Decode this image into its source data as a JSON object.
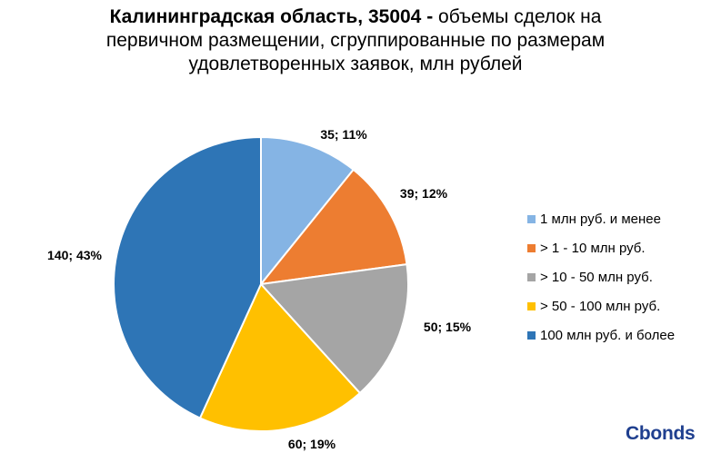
{
  "title": {
    "bold": "Калининградская область, 35004 -",
    "line1_rest": " объемы сделок на",
    "line2": "первичном размещении, сгруппированные по размерам",
    "line3": "удовлетворенных заявок, млн рублей"
  },
  "chart_data": {
    "type": "pie",
    "title": "Калининградская область, 35004 - объемы сделок на первичном размещении, сгруппированные по размерам удовлетворенных заявок, млн рублей",
    "categories": [
      "1 млн руб. и менее",
      "> 1 - 10 млн руб.",
      "> 10 - 50 млн руб.",
      "> 50 - 100 млн руб.",
      "100 млн руб. и более"
    ],
    "values": [
      35,
      39,
      50,
      60,
      140
    ],
    "percents": [
      11,
      12,
      15,
      19,
      43
    ],
    "data_labels": [
      "35; 11%",
      "39; 12%",
      "50; 15%",
      "60; 19%",
      "140; 43%"
    ],
    "colors": [
      "#85b4e4",
      "#ed7d31",
      "#a5a5a5",
      "#ffc000",
      "#2e75b6"
    ],
    "legend_position": "right"
  },
  "logo": {
    "text_c": "Cb",
    "text_o": "o",
    "text_rest": "nds"
  }
}
